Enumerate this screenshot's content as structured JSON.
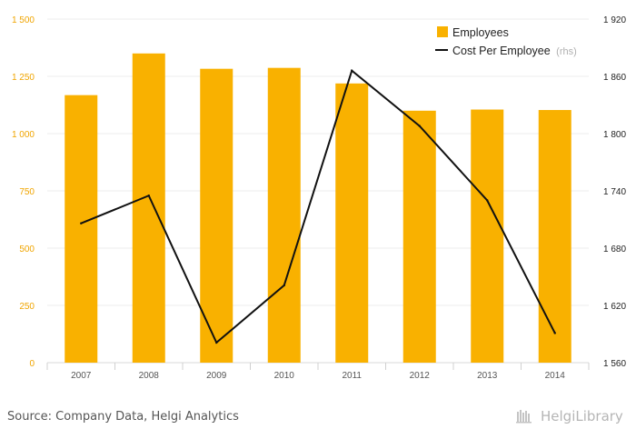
{
  "chart_data": {
    "type": "bar",
    "categories": [
      "2007",
      "2008",
      "2009",
      "2010",
      "2011",
      "2012",
      "2013",
      "2014"
    ],
    "series": [
      {
        "name": "Employees",
        "type": "bar",
        "axis": "left",
        "color": "#f9b100",
        "values": [
          1168,
          1350,
          1283,
          1287,
          1219,
          1100,
          1105,
          1103
        ]
      },
      {
        "name": "Cost Per Employee",
        "name_suffix": "(rhs)",
        "type": "line",
        "axis": "right",
        "color": "#111111",
        "values": [
          1706,
          1735,
          1581,
          1641,
          1866,
          1808,
          1730,
          1591
        ]
      }
    ],
    "y_left": {
      "ticks": [
        "0",
        "250",
        "500",
        "750",
        "1 000",
        "1 250",
        "1 500"
      ],
      "min": 0,
      "max": 1500,
      "color": "#f0a500"
    },
    "y_right": {
      "ticks": [
        "1 560",
        "1 620",
        "1 680",
        "1 740",
        "1 800",
        "1 860",
        "1 920"
      ],
      "min": 1560,
      "max": 1920
    },
    "grid": true,
    "legend_position": "top-right"
  },
  "footer": {
    "source": "Source: Company Data, Helgi Analytics",
    "logo_text": "HelgiLibrary"
  }
}
